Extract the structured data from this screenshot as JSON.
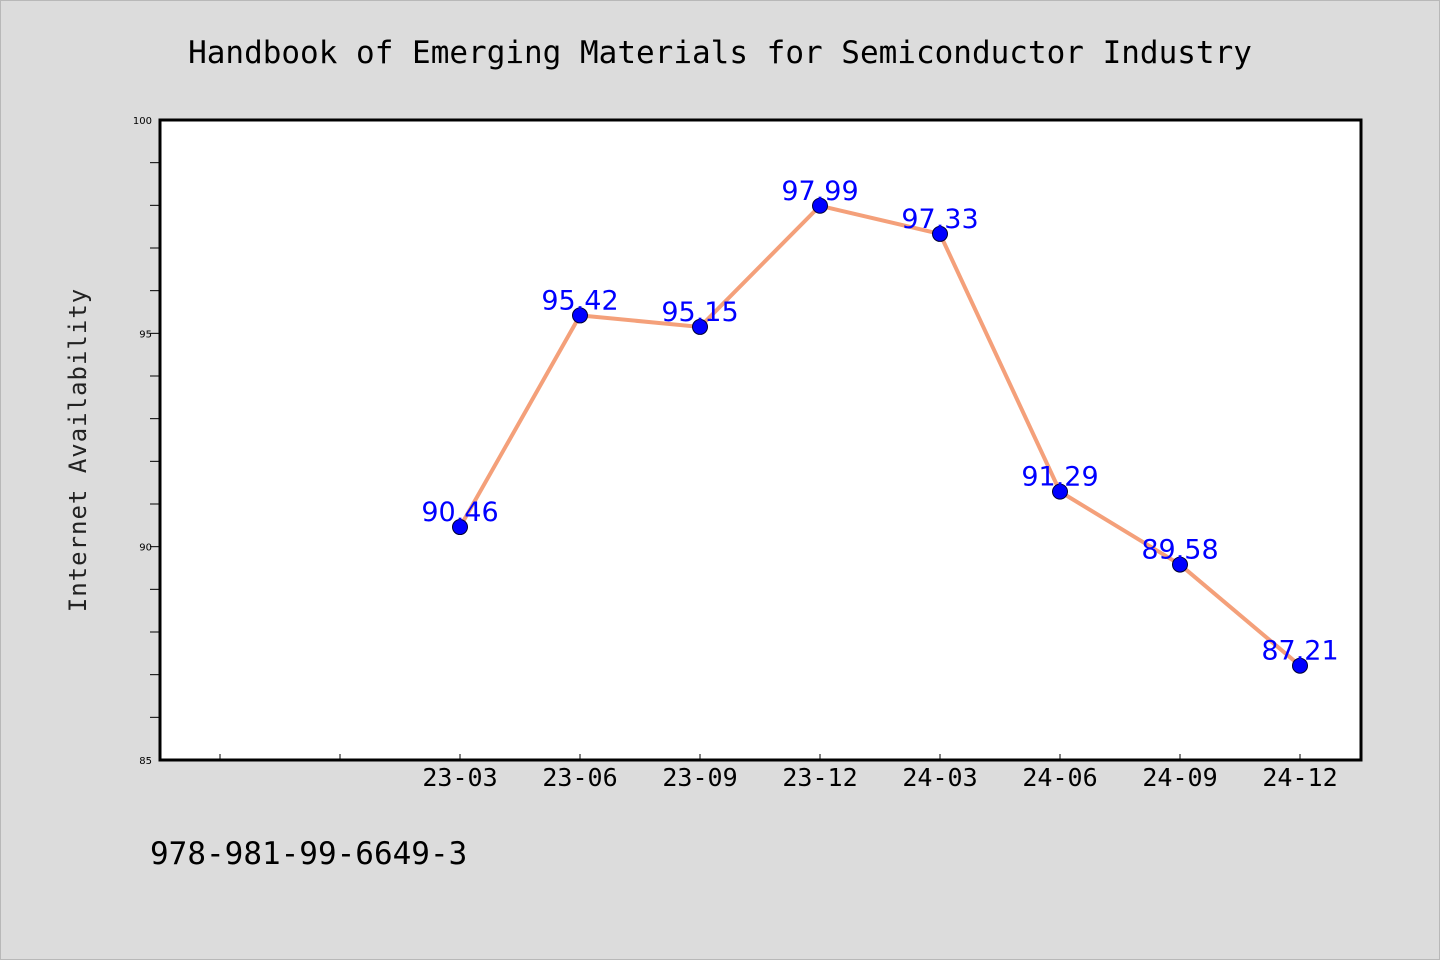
{
  "footer": {
    "isbn": "978-981-99-6649-3"
  },
  "chart_data": {
    "type": "line",
    "title": "Handbook of Emerging Materials for Semiconductor Industry",
    "xlabel": "",
    "ylabel": "Internet Availability",
    "categories": [
      "23-03",
      "23-06",
      "23-09",
      "23-12",
      "24-03",
      "24-06",
      "24-09",
      "24-12"
    ],
    "series": [
      {
        "values": [
          90.46,
          95.42,
          95.15,
          97.99,
          97.33,
          91.29,
          89.58,
          87.21
        ],
        "labels": [
          "90.46",
          "95.42",
          "95.15",
          "97.99",
          "97.33",
          "91.29",
          "89.58",
          "87.21"
        ]
      }
    ],
    "ylim": [
      85,
      100
    ],
    "yticks": [
      "85",
      "90",
      "95",
      "100"
    ],
    "leading_empty_ticks": 2,
    "grid": false,
    "legend": "none",
    "colors": {
      "line": "#f4a07a",
      "marker": "#0000ff",
      "data_label": "#0000ff",
      "plot_background": "#ffffff",
      "page_background": "#dcdcdc"
    }
  }
}
